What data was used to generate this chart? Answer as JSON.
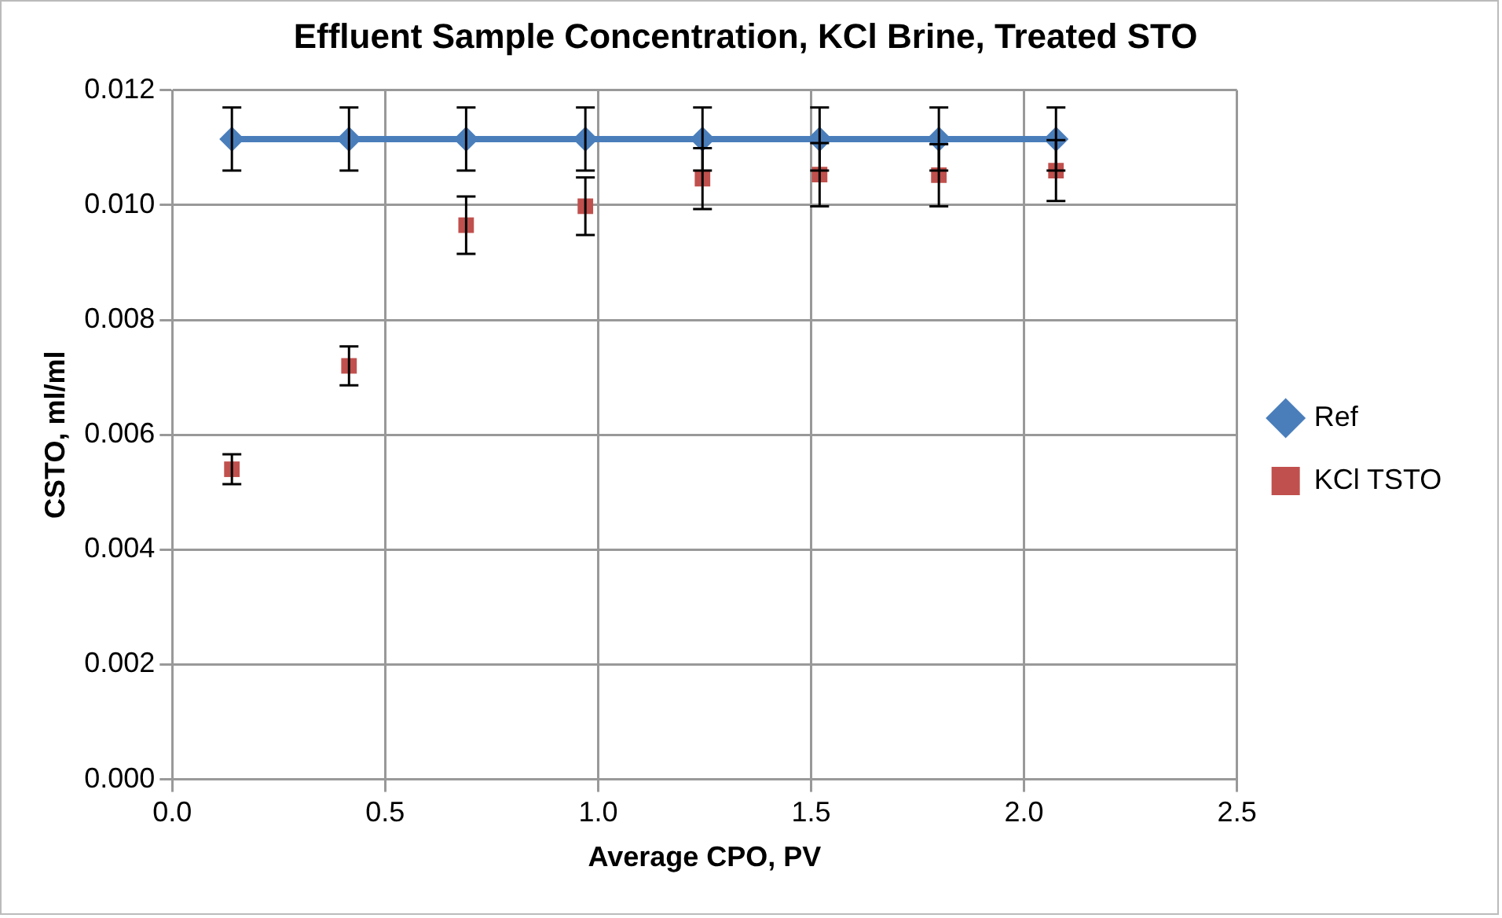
{
  "chart_data": {
    "type": "line",
    "title": "Effluent Sample Concentration, KCl Brine, Treated STO",
    "xlabel": "Average CPO, PV",
    "ylabel": "CSTO, ml/ml",
    "x": [
      0.14,
      0.415,
      0.69,
      0.97,
      1.245,
      1.52,
      1.8,
      2.075
    ],
    "series": [
      {
        "name": "Ref",
        "marker": "diamond",
        "color": "#4a7ebb",
        "values": [
          0.01115,
          0.01115,
          0.01115,
          0.01115,
          0.01115,
          0.01115,
          0.01115,
          0.01115
        ],
        "errors": [
          0.00055,
          0.00055,
          0.00055,
          0.00055,
          0.00055,
          0.00055,
          0.00055,
          0.00055
        ]
      },
      {
        "name": "KCl TSTO",
        "type": "scatter",
        "marker": "square",
        "color": "#c0504d",
        "values": [
          0.0054,
          0.0072,
          0.00965,
          0.00998,
          0.01046,
          0.01053,
          0.01052,
          0.0106
        ],
        "errors": [
          0.00026,
          0.00034,
          0.0005,
          0.0005,
          0.00053,
          0.00055,
          0.00054,
          0.00053
        ]
      }
    ],
    "xlim": [
      0,
      2.5
    ],
    "xticks": [
      {
        "value": 0,
        "label": "0.0"
      },
      {
        "value": 0.5,
        "label": "0.5"
      },
      {
        "value": 1,
        "label": "1.0"
      },
      {
        "value": 1.5,
        "label": "1.5"
      },
      {
        "value": 2,
        "label": "2.0"
      },
      {
        "value": 2.5,
        "label": "2.5"
      }
    ],
    "ylim": [
      0,
      0.012
    ],
    "yticks": [
      {
        "value": 0,
        "label": "0.000"
      },
      {
        "value": 0.002,
        "label": "0.002"
      },
      {
        "value": 0.004,
        "label": "0.004"
      },
      {
        "value": 0.006,
        "label": "0.006"
      },
      {
        "value": 0.008,
        "label": "0.008"
      },
      {
        "value": 0.01,
        "label": "0.010"
      },
      {
        "value": 0.012,
        "label": "0.012"
      }
    ],
    "grid": true,
    "legend": "right",
    "line_style": "solid"
  }
}
